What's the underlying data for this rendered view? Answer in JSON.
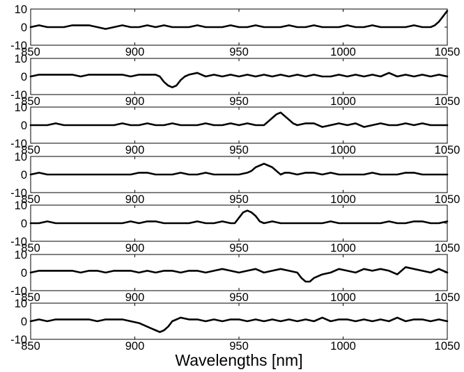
{
  "chart_data": {
    "type": "line",
    "layout": "7 stacked subplots sharing the x axis",
    "xlabel": "Wavelengths [nm]",
    "xlim": [
      850,
      1050
    ],
    "x_ticks": [
      850,
      900,
      950,
      1000,
      1050
    ],
    "ylim": [
      -10,
      10
    ],
    "y_ticks": [
      -10,
      0,
      10
    ],
    "grid": false,
    "legend": "none",
    "line_color": "#000000",
    "panels": [
      {
        "x": [
          850,
          854,
          858,
          862,
          866,
          870,
          874,
          878,
          882,
          886,
          890,
          894,
          898,
          902,
          906,
          910,
          914,
          918,
          922,
          926,
          930,
          934,
          938,
          942,
          946,
          950,
          954,
          958,
          962,
          966,
          970,
          974,
          978,
          982,
          986,
          990,
          994,
          998,
          1002,
          1006,
          1010,
          1014,
          1018,
          1022,
          1026,
          1030,
          1034,
          1038,
          1042,
          1044,
          1046,
          1048,
          1050
        ],
        "y": [
          0,
          1,
          0,
          0,
          0,
          1,
          1,
          1,
          0,
          -1,
          0,
          1,
          0,
          0,
          1,
          0,
          1,
          0,
          0,
          0,
          1,
          0,
          0,
          0,
          1,
          0,
          0,
          1,
          0,
          0,
          0,
          1,
          0,
          0,
          1,
          0,
          0,
          0,
          1,
          0,
          0,
          1,
          0,
          0,
          0,
          0,
          1,
          0,
          0,
          1,
          3,
          6,
          9
        ]
      },
      {
        "x": [
          850,
          854,
          858,
          862,
          866,
          870,
          874,
          878,
          882,
          886,
          890,
          894,
          898,
          902,
          906,
          910,
          912,
          914,
          916,
          918,
          920,
          922,
          924,
          926,
          930,
          934,
          938,
          942,
          946,
          950,
          954,
          958,
          962,
          966,
          970,
          974,
          978,
          982,
          986,
          990,
          994,
          998,
          1002,
          1006,
          1010,
          1014,
          1018,
          1022,
          1026,
          1030,
          1034,
          1038,
          1042,
          1046,
          1050
        ],
        "y": [
          0,
          1,
          1,
          1,
          1,
          1,
          0,
          1,
          1,
          1,
          1,
          1,
          0,
          1,
          1,
          1,
          0,
          -3,
          -5,
          -6,
          -5,
          -2,
          0,
          1,
          2,
          0,
          1,
          0,
          1,
          0,
          1,
          0,
          1,
          0,
          1,
          0,
          1,
          0,
          1,
          0,
          0,
          1,
          0,
          1,
          0,
          1,
          0,
          2,
          0,
          1,
          0,
          1,
          0,
          1,
          0
        ]
      },
      {
        "x": [
          850,
          854,
          858,
          862,
          866,
          870,
          874,
          878,
          882,
          886,
          890,
          894,
          898,
          902,
          906,
          910,
          914,
          918,
          922,
          926,
          930,
          934,
          938,
          942,
          946,
          950,
          954,
          958,
          962,
          964,
          966,
          968,
          970,
          972,
          974,
          976,
          978,
          982,
          986,
          990,
          994,
          998,
          1002,
          1006,
          1010,
          1014,
          1018,
          1022,
          1026,
          1030,
          1034,
          1038,
          1042,
          1046,
          1050
        ],
        "y": [
          0,
          0,
          0,
          1,
          0,
          0,
          0,
          0,
          0,
          0,
          0,
          1,
          0,
          0,
          1,
          0,
          0,
          1,
          0,
          0,
          0,
          1,
          0,
          0,
          1,
          0,
          1,
          0,
          0,
          2,
          4,
          6,
          7,
          5,
          3,
          1,
          0,
          1,
          1,
          -1,
          0,
          1,
          0,
          1,
          -1,
          0,
          1,
          0,
          0,
          1,
          0,
          1,
          0,
          0,
          0
        ]
      },
      {
        "x": [
          850,
          854,
          858,
          862,
          866,
          870,
          874,
          878,
          882,
          886,
          890,
          894,
          898,
          902,
          906,
          910,
          914,
          918,
          922,
          926,
          930,
          934,
          938,
          942,
          946,
          950,
          954,
          956,
          958,
          960,
          962,
          964,
          966,
          968,
          970,
          972,
          974,
          978,
          982,
          986,
          990,
          994,
          998,
          1002,
          1006,
          1010,
          1014,
          1018,
          1022,
          1026,
          1030,
          1034,
          1038,
          1042,
          1046,
          1050
        ],
        "y": [
          0,
          1,
          0,
          0,
          0,
          0,
          0,
          0,
          0,
          0,
          0,
          0,
          0,
          1,
          1,
          0,
          0,
          0,
          1,
          0,
          0,
          1,
          0,
          0,
          0,
          0,
          1,
          2,
          4,
          5,
          6,
          5,
          4,
          2,
          0,
          1,
          1,
          0,
          1,
          1,
          0,
          1,
          0,
          0,
          0,
          0,
          1,
          0,
          0,
          0,
          1,
          1,
          0,
          0,
          0,
          0
        ]
      },
      {
        "x": [
          850,
          854,
          858,
          862,
          866,
          870,
          874,
          878,
          882,
          886,
          890,
          894,
          898,
          902,
          906,
          910,
          914,
          918,
          922,
          926,
          930,
          934,
          938,
          942,
          946,
          948,
          950,
          952,
          954,
          956,
          958,
          960,
          962,
          966,
          970,
          974,
          978,
          982,
          986,
          990,
          994,
          998,
          1002,
          1006,
          1010,
          1014,
          1018,
          1022,
          1026,
          1030,
          1034,
          1038,
          1042,
          1046,
          1050
        ],
        "y": [
          0,
          0,
          1,
          0,
          0,
          0,
          0,
          0,
          0,
          0,
          0,
          0,
          1,
          0,
          1,
          1,
          0,
          0,
          0,
          0,
          1,
          0,
          0,
          1,
          0,
          0,
          3,
          6,
          7,
          6,
          4,
          1,
          0,
          1,
          0,
          0,
          0,
          0,
          0,
          0,
          1,
          0,
          0,
          0,
          0,
          0,
          0,
          1,
          0,
          0,
          1,
          1,
          0,
          0,
          1
        ]
      },
      {
        "x": [
          850,
          854,
          858,
          862,
          866,
          870,
          874,
          878,
          882,
          886,
          890,
          894,
          898,
          902,
          906,
          910,
          914,
          918,
          922,
          926,
          930,
          934,
          938,
          942,
          946,
          950,
          954,
          958,
          962,
          966,
          970,
          974,
          978,
          980,
          982,
          984,
          986,
          990,
          994,
          998,
          1002,
          1006,
          1010,
          1014,
          1018,
          1022,
          1026,
          1030,
          1034,
          1038,
          1042,
          1046,
          1050
        ],
        "y": [
          0,
          1,
          1,
          1,
          1,
          1,
          0,
          1,
          1,
          0,
          1,
          1,
          1,
          0,
          1,
          0,
          1,
          1,
          0,
          1,
          1,
          0,
          1,
          2,
          1,
          0,
          1,
          2,
          0,
          1,
          2,
          1,
          0,
          -3,
          -5,
          -5,
          -3,
          -1,
          0,
          2,
          1,
          0,
          2,
          1,
          2,
          1,
          -1,
          3,
          2,
          1,
          0,
          2,
          0
        ]
      },
      {
        "x": [
          850,
          854,
          858,
          862,
          866,
          870,
          874,
          878,
          882,
          886,
          890,
          894,
          898,
          902,
          904,
          906,
          908,
          910,
          912,
          914,
          916,
          918,
          922,
          926,
          930,
          934,
          938,
          942,
          946,
          950,
          954,
          958,
          962,
          966,
          970,
          974,
          978,
          982,
          986,
          990,
          994,
          998,
          1002,
          1006,
          1010,
          1014,
          1018,
          1022,
          1026,
          1030,
          1034,
          1038,
          1042,
          1046,
          1050
        ],
        "y": [
          0,
          1,
          0,
          1,
          1,
          1,
          1,
          1,
          0,
          1,
          1,
          1,
          0,
          -1,
          -2,
          -3,
          -4,
          -5,
          -6,
          -5,
          -3,
          0,
          2,
          1,
          1,
          0,
          1,
          0,
          1,
          1,
          0,
          1,
          0,
          1,
          0,
          1,
          0,
          1,
          0,
          2,
          0,
          1,
          1,
          0,
          1,
          0,
          1,
          0,
          2,
          0,
          1,
          1,
          0,
          1,
          0
        ]
      }
    ]
  }
}
